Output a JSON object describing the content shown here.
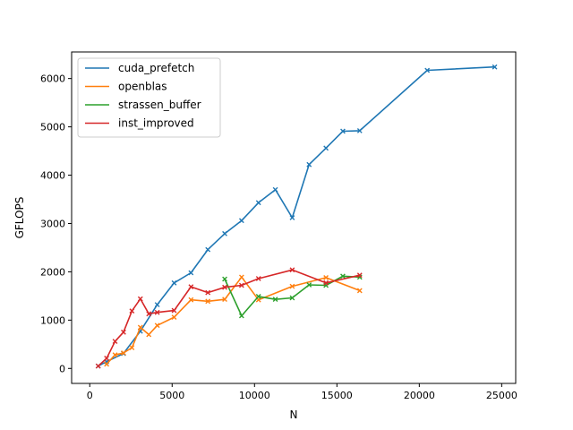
{
  "chart_data": {
    "type": "line",
    "title": "",
    "xlabel": "N",
    "ylabel": "GFLOPS",
    "xlim": [
      -1100,
      25850
    ],
    "ylim": [
      -310,
      6550
    ],
    "xticks": [
      0,
      5000,
      10000,
      15000,
      20000,
      25000
    ],
    "yticks": [
      0,
      1000,
      2000,
      3000,
      4000,
      5000,
      6000
    ],
    "grid": false,
    "legend_position": "top-left",
    "marker": "x",
    "series": [
      {
        "name": "cuda_prefetch",
        "color": "#1f77b4",
        "points": [
          [
            512,
            50
          ],
          [
            1024,
            140
          ],
          [
            2048,
            310
          ],
          [
            3072,
            770
          ],
          [
            4096,
            1320
          ],
          [
            5120,
            1770
          ],
          [
            6144,
            1980
          ],
          [
            7168,
            2460
          ],
          [
            8192,
            2790
          ],
          [
            9216,
            3060
          ],
          [
            10240,
            3430
          ],
          [
            11264,
            3700
          ],
          [
            12288,
            3120
          ],
          [
            13312,
            4220
          ],
          [
            14336,
            4560
          ],
          [
            15360,
            4910
          ],
          [
            16384,
            4920
          ],
          [
            20480,
            6170
          ],
          [
            24576,
            6240
          ]
        ]
      },
      {
        "name": "openblas",
        "color": "#ff7f0e",
        "points": [
          [
            1024,
            90
          ],
          [
            1536,
            280
          ],
          [
            2048,
            320
          ],
          [
            2560,
            430
          ],
          [
            3072,
            850
          ],
          [
            3584,
            700
          ],
          [
            4096,
            890
          ],
          [
            5120,
            1060
          ],
          [
            6144,
            1420
          ],
          [
            7168,
            1390
          ],
          [
            8192,
            1430
          ],
          [
            9216,
            1890
          ],
          [
            10240,
            1420
          ],
          [
            12288,
            1700
          ],
          [
            14336,
            1880
          ],
          [
            16384,
            1610
          ]
        ]
      },
      {
        "name": "strassen_buffer",
        "color": "#2ca02c",
        "points": [
          [
            8192,
            1850
          ],
          [
            9216,
            1090
          ],
          [
            10240,
            1490
          ],
          [
            11264,
            1430
          ],
          [
            12288,
            1460
          ],
          [
            13312,
            1730
          ],
          [
            14336,
            1720
          ],
          [
            15360,
            1910
          ],
          [
            16384,
            1890
          ]
        ]
      },
      {
        "name": "inst_improved",
        "color": "#d62728",
        "points": [
          [
            512,
            50
          ],
          [
            1024,
            210
          ],
          [
            1536,
            560
          ],
          [
            2048,
            750
          ],
          [
            2560,
            1190
          ],
          [
            3072,
            1440
          ],
          [
            3584,
            1130
          ],
          [
            4096,
            1160
          ],
          [
            5120,
            1200
          ],
          [
            6144,
            1690
          ],
          [
            7168,
            1570
          ],
          [
            8192,
            1680
          ],
          [
            9216,
            1720
          ],
          [
            10240,
            1860
          ],
          [
            12288,
            2040
          ],
          [
            14336,
            1770
          ],
          [
            16384,
            1930
          ]
        ]
      }
    ]
  }
}
